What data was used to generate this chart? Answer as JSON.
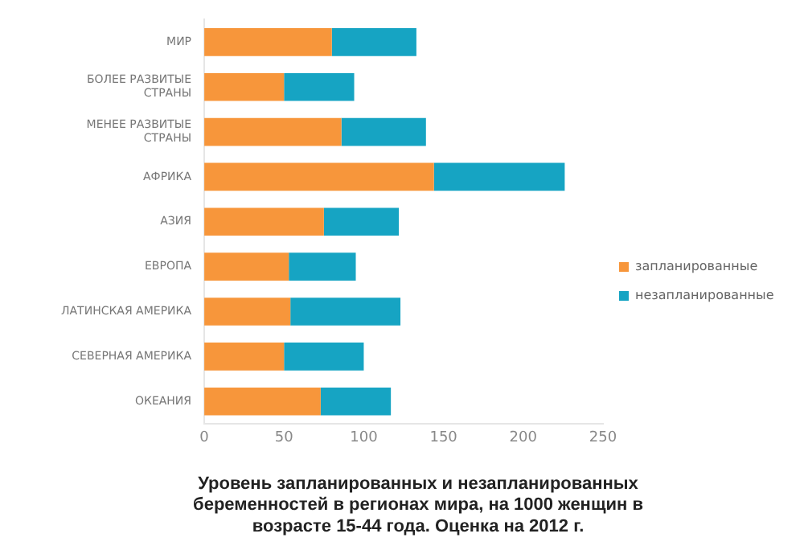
{
  "chart_data": {
    "type": "bar",
    "orientation": "horizontal",
    "stacked": true,
    "title": "Уровень запланированных и незапланированных беременностей в регионах мира, на 1000 женщин в возрасте 15-44 года. Оценка на 2012 г.",
    "categories": [
      "МИР",
      "БОЛЕЕ РАЗВИТЫЕ СТРАНЫ",
      "МЕНЕЕ РАЗВИТЫЕ СТРАНЫ",
      "АФРИКА",
      "АЗИЯ",
      "ЕВРОПА",
      "ЛАТИНСКАЯ АМЕРИКА",
      "СЕВЕРНАЯ АМЕРИКА",
      "ОКЕАНИЯ"
    ],
    "series": [
      {
        "name": "запланированные",
        "color": "#f7963b",
        "values": [
          80,
          50,
          86,
          144,
          75,
          53,
          54,
          50,
          73
        ]
      },
      {
        "name": "незапланированные",
        "color": "#16a4c3",
        "values": [
          53,
          44,
          53,
          82,
          47,
          42,
          69,
          50,
          44
        ]
      }
    ],
    "xlim": [
      0,
      250
    ],
    "xticks": [
      0,
      50,
      100,
      150,
      200,
      250
    ],
    "grid": false,
    "legend": "right"
  }
}
